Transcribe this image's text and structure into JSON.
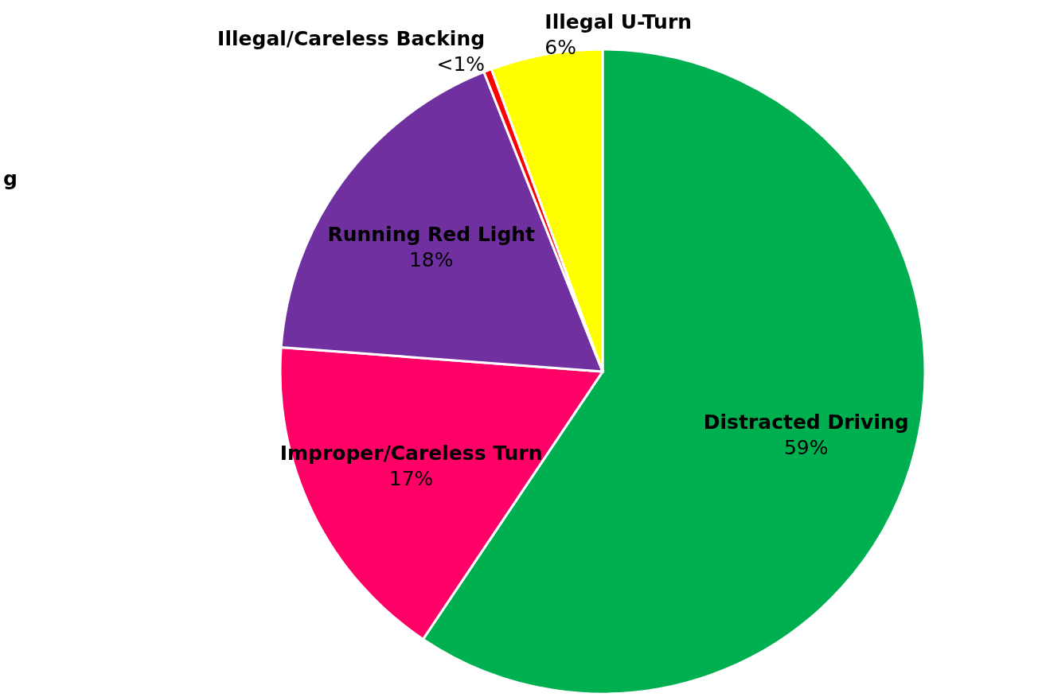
{
  "chart_data": {
    "type": "pie",
    "categories": [
      "Distracted Driving",
      "Improper/Careless Turn",
      "Running Red Light",
      "Illegal/Careless Backing",
      "Illegal U-Turn"
    ],
    "values": [
      59.4,
      16.8,
      17.8,
      0.4,
      5.6
    ],
    "value_labels": [
      "59%",
      "17%",
      "18%",
      "<1%",
      "6%"
    ],
    "colors": [
      "#00b050",
      "#ff0066",
      "#7030a0",
      "#ff0000",
      "#ffff00"
    ],
    "annotations": [
      "g"
    ]
  }
}
